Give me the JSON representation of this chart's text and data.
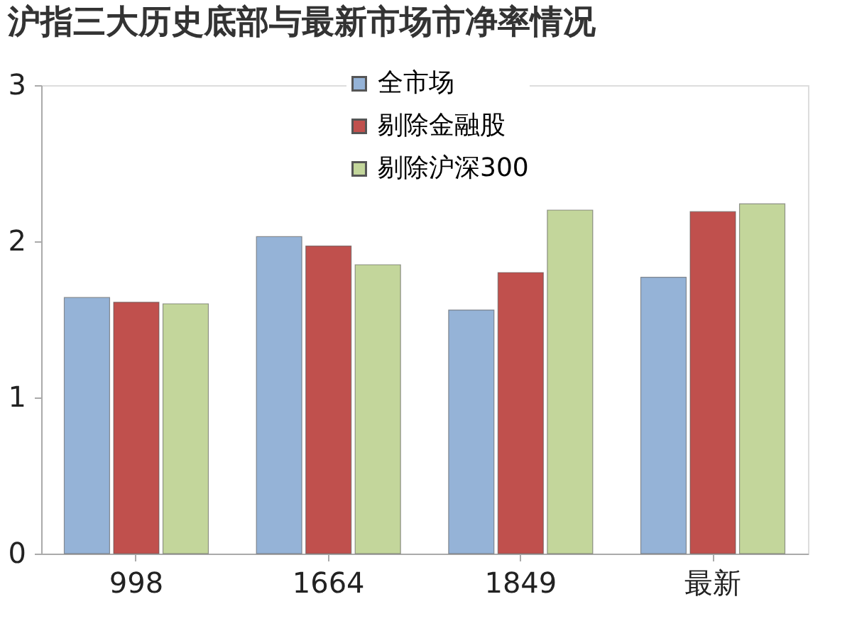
{
  "chart_data": {
    "type": "bar",
    "title": "沪指三大历史底部与最新市场市净率情况",
    "categories": [
      "998",
      "1664",
      "1849",
      "最新"
    ],
    "series": [
      {
        "name": "全市场",
        "color": "#95b3d7",
        "values": [
          1.64,
          2.03,
          1.56,
          1.77
        ]
      },
      {
        "name": "剔除金融股",
        "color": "#c0504d",
        "values": [
          1.61,
          1.97,
          1.8,
          2.19
        ]
      },
      {
        "name": "剔除沪深300",
        "color": "#c3d69b",
        "values": [
          1.6,
          1.85,
          2.2,
          2.24
        ]
      }
    ],
    "ylim": [
      0,
      3
    ],
    "yticks": [
      0,
      1,
      2,
      3
    ],
    "grid": false,
    "legend": "top"
  }
}
